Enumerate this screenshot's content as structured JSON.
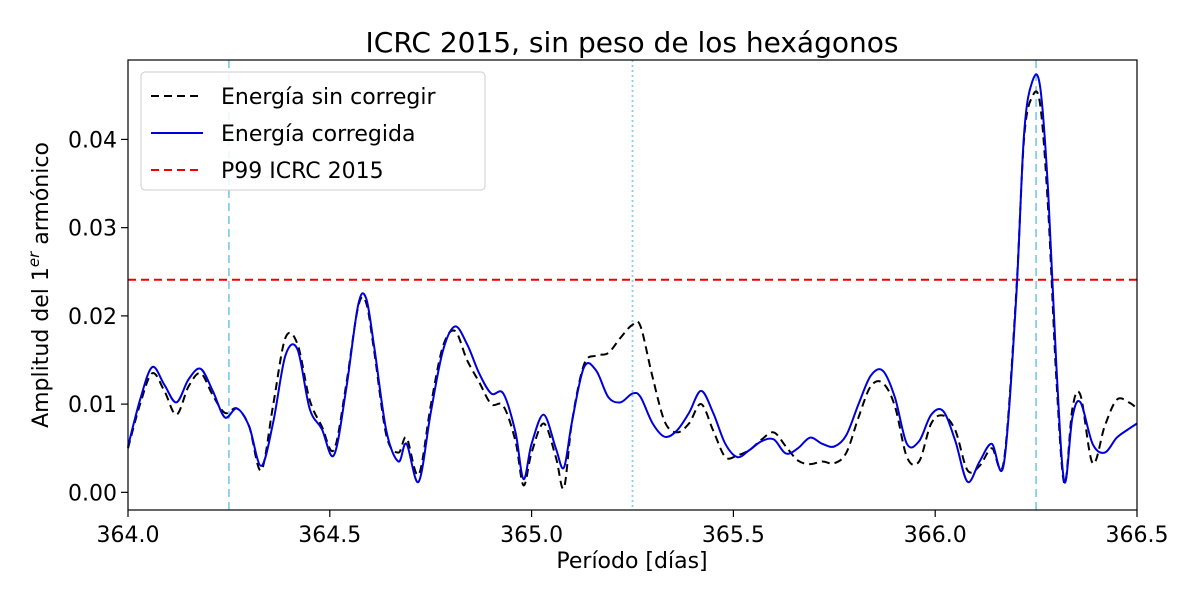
{
  "chart_data": {
    "type": "line",
    "title": "ICRC 2015, sin peso de los hexágonos",
    "xlabel": "Período [días]",
    "ylabel": {
      "prefix": "Amplitud del 1",
      "sup": "er",
      "suffix": " armónico"
    },
    "xlim": [
      364.0,
      366.5
    ],
    "ylim": [
      -0.002,
      0.049
    ],
    "x_ticks": [
      364.0,
      364.5,
      365.0,
      365.5,
      366.0,
      366.5
    ],
    "x_tick_labels": [
      "364.0",
      "364.5",
      "365.0",
      "365.5",
      "366.0",
      "366.5"
    ],
    "y_ticks": [
      0.0,
      0.01,
      0.02,
      0.03,
      0.04
    ],
    "y_tick_labels": [
      "0.00",
      "0.01",
      "0.02",
      "0.03",
      "0.04"
    ],
    "legend_position": "top-left",
    "grid": false,
    "series": [
      {
        "name": "Energía sin corregir",
        "color": "#000000",
        "style": "dashed",
        "x": [
          364.0,
          364.03,
          364.06,
          364.09,
          364.12,
          364.15,
          364.18,
          364.21,
          364.24,
          364.27,
          364.3,
          364.33,
          364.36,
          364.39,
          364.42,
          364.45,
          364.48,
          364.51,
          364.54,
          364.57,
          364.59,
          364.61,
          364.64,
          364.67,
          364.69,
          364.72,
          364.75,
          364.78,
          364.81,
          364.84,
          364.87,
          364.9,
          364.93,
          364.96,
          364.98,
          365.0,
          365.03,
          365.06,
          365.08,
          365.1,
          365.13,
          365.16,
          365.19,
          365.22,
          365.25,
          365.27,
          365.3,
          365.33,
          365.36,
          365.39,
          365.42,
          365.45,
          365.48,
          365.51,
          365.54,
          365.57,
          365.6,
          365.63,
          365.66,
          365.69,
          365.72,
          365.75,
          365.78,
          365.81,
          365.84,
          365.87,
          365.9,
          365.93,
          365.96,
          365.99,
          366.02,
          366.05,
          366.08,
          366.11,
          366.14,
          366.17,
          366.2,
          366.22,
          366.24,
          366.26,
          366.28,
          366.3,
          366.32,
          366.34,
          366.36,
          366.39,
          366.42,
          366.45,
          366.48,
          366.5
        ],
        "y": [
          0.005,
          0.01,
          0.0135,
          0.0115,
          0.0088,
          0.012,
          0.0135,
          0.011,
          0.009,
          0.0095,
          0.0075,
          0.0025,
          0.01,
          0.0175,
          0.0168,
          0.0105,
          0.0075,
          0.0048,
          0.012,
          0.021,
          0.0215,
          0.016,
          0.0065,
          0.0045,
          0.0062,
          0.002,
          0.0098,
          0.0165,
          0.0183,
          0.015,
          0.0125,
          0.01,
          0.0098,
          0.0058,
          0.0008,
          0.0045,
          0.0078,
          0.004,
          0.0005,
          0.008,
          0.0145,
          0.0155,
          0.0158,
          0.0175,
          0.019,
          0.0188,
          0.013,
          0.008,
          0.0068,
          0.0078,
          0.01,
          0.007,
          0.004,
          0.0042,
          0.0048,
          0.006,
          0.0068,
          0.0052,
          0.0036,
          0.0032,
          0.0035,
          0.0033,
          0.0045,
          0.0085,
          0.012,
          0.0124,
          0.0098,
          0.004,
          0.0035,
          0.0078,
          0.0087,
          0.007,
          0.0025,
          0.003,
          0.005,
          0.0035,
          0.022,
          0.04,
          0.0448,
          0.044,
          0.032,
          0.013,
          0.001,
          0.0095,
          0.011,
          0.0033,
          0.0075,
          0.0105,
          0.0102,
          0.0095
        ]
      },
      {
        "name": "Energía corregida",
        "color": "#0000dd",
        "style": "solid",
        "x": [
          364.0,
          364.03,
          364.06,
          364.09,
          364.12,
          364.15,
          364.18,
          364.21,
          364.24,
          364.27,
          364.3,
          364.33,
          364.36,
          364.39,
          364.42,
          364.45,
          364.48,
          364.51,
          364.54,
          364.57,
          364.59,
          364.61,
          364.64,
          364.67,
          364.69,
          364.72,
          364.75,
          364.78,
          364.81,
          364.84,
          364.87,
          364.9,
          364.93,
          364.96,
          364.98,
          365.0,
          365.03,
          365.06,
          365.08,
          365.1,
          365.13,
          365.16,
          365.19,
          365.22,
          365.25,
          365.27,
          365.3,
          365.33,
          365.36,
          365.39,
          365.42,
          365.45,
          365.48,
          365.51,
          365.54,
          365.57,
          365.6,
          365.63,
          365.66,
          365.69,
          365.72,
          365.75,
          365.78,
          365.81,
          365.84,
          365.87,
          365.9,
          365.93,
          365.96,
          365.99,
          366.02,
          366.05,
          366.08,
          366.11,
          366.14,
          366.17,
          366.2,
          366.22,
          366.24,
          366.26,
          366.28,
          366.3,
          366.32,
          366.34,
          366.36,
          366.39,
          366.42,
          366.45,
          366.48,
          366.5
        ],
        "y": [
          0.0052,
          0.0105,
          0.0142,
          0.0122,
          0.0102,
          0.0128,
          0.014,
          0.0115,
          0.0085,
          0.0095,
          0.0075,
          0.003,
          0.008,
          0.0155,
          0.0162,
          0.0095,
          0.0072,
          0.0042,
          0.0115,
          0.0212,
          0.022,
          0.0165,
          0.007,
          0.0035,
          0.0055,
          0.0012,
          0.009,
          0.016,
          0.0188,
          0.0168,
          0.0135,
          0.0112,
          0.0112,
          0.0068,
          0.0015,
          0.0055,
          0.0088,
          0.005,
          0.0028,
          0.008,
          0.0142,
          0.0138,
          0.0108,
          0.0102,
          0.0112,
          0.0108,
          0.0078,
          0.0063,
          0.007,
          0.009,
          0.0115,
          0.009,
          0.0055,
          0.004,
          0.0048,
          0.0058,
          0.006,
          0.0044,
          0.005,
          0.0062,
          0.0055,
          0.0052,
          0.0065,
          0.01,
          0.0132,
          0.0138,
          0.0108,
          0.0055,
          0.0058,
          0.0088,
          0.0092,
          0.0058,
          0.0012,
          0.0035,
          0.0055,
          0.0032,
          0.0215,
          0.0405,
          0.0465,
          0.046,
          0.034,
          0.0145,
          0.0012,
          0.0085,
          0.0102,
          0.0055,
          0.0045,
          0.0062,
          0.0072,
          0.0078
        ]
      },
      {
        "name": "P99 ICRC 2015",
        "color": "#ee0000",
        "style": "dashed",
        "kind": "hline",
        "y": 0.0241
      }
    ],
    "vlines": [
      {
        "x": 364.25,
        "color": "#87ceeb",
        "style": "dashed"
      },
      {
        "x": 365.25,
        "color": "#87ceeb",
        "style": "dotted"
      },
      {
        "x": 366.25,
        "color": "#87ceeb",
        "style": "dashed"
      }
    ]
  }
}
